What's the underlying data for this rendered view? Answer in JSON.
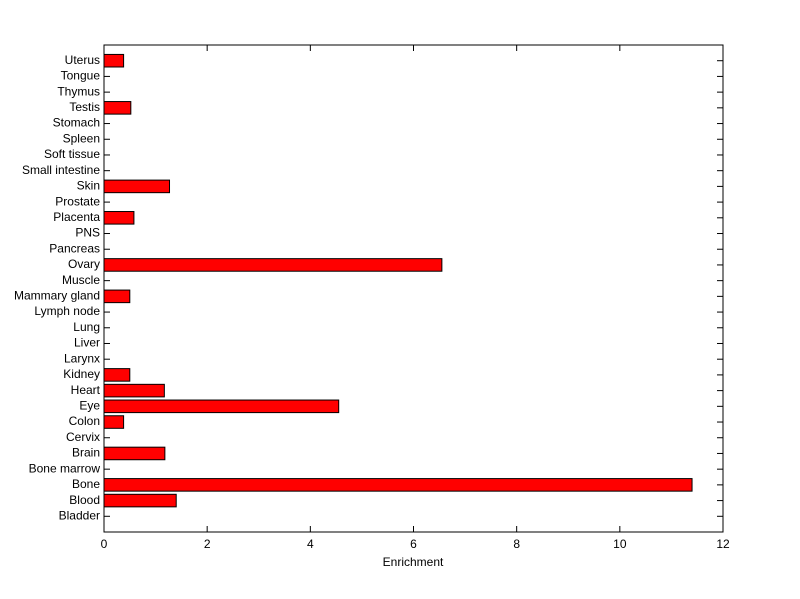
{
  "chart_data": {
    "type": "barh",
    "xlabel": "Enrichment",
    "categories": [
      "Bladder",
      "Blood",
      "Bone",
      "Bone marrow",
      "Brain",
      "Cervix",
      "Colon",
      "Eye",
      "Heart",
      "Kidney",
      "Larynx",
      "Liver",
      "Lung",
      "Lymph node",
      "Mammary gland",
      "Muscle",
      "Ovary",
      "Pancreas",
      "PNS",
      "Placenta",
      "Prostate",
      "Skin",
      "Small intestine",
      "Soft tissue",
      "Spleen",
      "Stomach",
      "Testis",
      "Thymus",
      "Tongue",
      "Uterus"
    ],
    "values": [
      0,
      1.4,
      11.4,
      0,
      1.18,
      0,
      0.38,
      4.55,
      1.17,
      0.5,
      0,
      0,
      0,
      0,
      0.5,
      0,
      6.55,
      0,
      0,
      0.58,
      0,
      1.27,
      0,
      0,
      0,
      0,
      0.52,
      0,
      0,
      0.38
    ],
    "color": "#ff0000",
    "xlim": [
      0,
      12
    ],
    "xticks": [
      0,
      2,
      4,
      6,
      8,
      10,
      12
    ],
    "grid": false
  }
}
